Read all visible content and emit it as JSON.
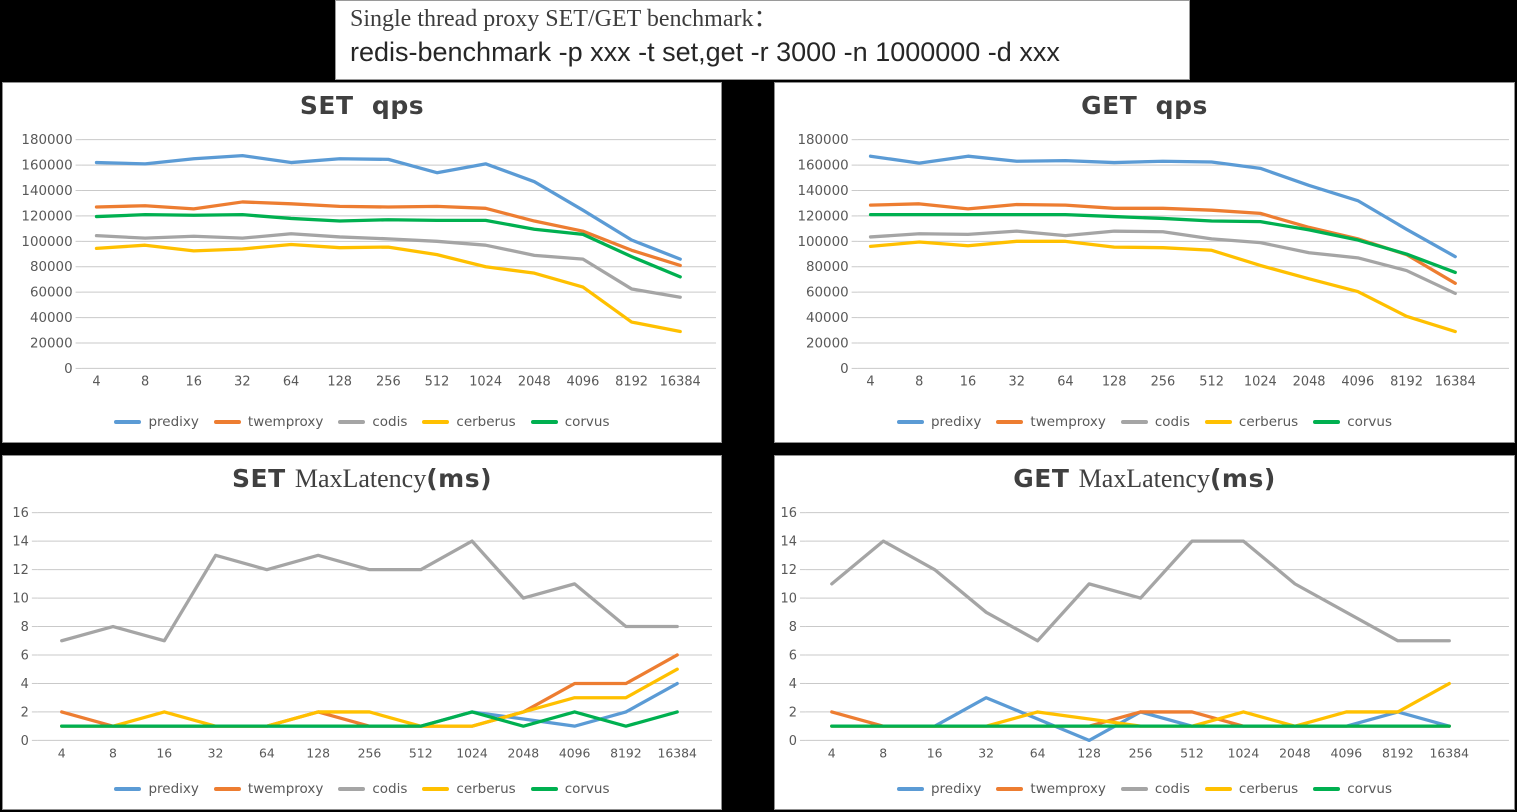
{
  "header": {
    "title_serif": "Single thread proxy SET/GET benchmark：",
    "command": "redis-benchmark -p xxx -t set,get -r 3000 -n 1000000 -d xxx"
  },
  "palette": {
    "predixy": "#5B9BD5",
    "twemproxy": "#ED7D31",
    "codis": "#A5A5A5",
    "cerberus": "#FFC000",
    "corvus": "#00B050",
    "gridline": "#C9C9C9",
    "axis_text": "#595959",
    "title_text": "#404040"
  },
  "legend_entries": [
    "predixy",
    "twemproxy",
    "codis",
    "cerberus",
    "corvus"
  ],
  "chart_data": [
    {
      "id": "set-qps",
      "type": "line",
      "title_parts": [
        {
          "text": "SET  qps",
          "font": "sans-bold"
        }
      ],
      "categories": [
        "4",
        "8",
        "16",
        "32",
        "64",
        "128",
        "256",
        "512",
        "1024",
        "2048",
        "4096",
        "8192",
        "16384"
      ],
      "xlabel": "",
      "ylabel": "",
      "ylim": [
        0,
        180000
      ],
      "y_step": 20000,
      "grid": true,
      "legend_position": "bottom",
      "series": [
        {
          "name": "predixy",
          "color": "#5B9BD5",
          "values": [
            162000,
            161000,
            165000,
            167500,
            162000,
            165000,
            164500,
            154000,
            161000,
            147000,
            124500,
            101000,
            86000
          ]
        },
        {
          "name": "twemproxy",
          "color": "#ED7D31",
          "values": [
            127000,
            128000,
            125500,
            131000,
            129500,
            127500,
            127000,
            127500,
            126000,
            116000,
            108000,
            93000,
            81000
          ]
        },
        {
          "name": "codis",
          "color": "#A5A5A5",
          "values": [
            104500,
            102500,
            104000,
            102500,
            106000,
            103500,
            102000,
            100000,
            97000,
            89000,
            86000,
            62500,
            56000
          ]
        },
        {
          "name": "cerberus",
          "color": "#FFC000",
          "values": [
            94500,
            97000,
            92500,
            94000,
            97500,
            95000,
            95500,
            89500,
            80000,
            75000,
            64000,
            36500,
            29000
          ]
        },
        {
          "name": "corvus",
          "color": "#00B050",
          "values": [
            119500,
            121000,
            120500,
            121000,
            118000,
            116000,
            117000,
            116500,
            116500,
            109500,
            105500,
            88000,
            72000
          ]
        }
      ]
    },
    {
      "id": "get-qps",
      "type": "line",
      "title_parts": [
        {
          "text": "GET  qps",
          "font": "sans-bold"
        }
      ],
      "categories": [
        "4",
        "8",
        "16",
        "32",
        "64",
        "128",
        "256",
        "512",
        "1024",
        "2048",
        "4096",
        "8192",
        "16384"
      ],
      "xlabel": "",
      "ylabel": "",
      "ylim": [
        0,
        180000
      ],
      "y_step": 20000,
      "grid": true,
      "legend_position": "bottom",
      "series": [
        {
          "name": "predixy",
          "color": "#5B9BD5",
          "values": [
            167000,
            161500,
            167000,
            163000,
            163500,
            162000,
            163000,
            162500,
            157500,
            144000,
            132000,
            109500,
            88000
          ]
        },
        {
          "name": "twemproxy",
          "color": "#ED7D31",
          "values": [
            128500,
            129500,
            125500,
            129000,
            128500,
            126000,
            126000,
            124500,
            122000,
            111000,
            102000,
            89500,
            67000
          ]
        },
        {
          "name": "codis",
          "color": "#A5A5A5",
          "values": [
            103500,
            106000,
            105500,
            108000,
            104500,
            108000,
            107500,
            102000,
            99000,
            91000,
            87000,
            77000,
            59000
          ]
        },
        {
          "name": "cerberus",
          "color": "#FFC000",
          "values": [
            96000,
            99500,
            96500,
            100000,
            100000,
            95500,
            95000,
            93000,
            81000,
            70500,
            60500,
            41000,
            29000
          ]
        },
        {
          "name": "corvus",
          "color": "#00B050",
          "values": [
            121000,
            121000,
            121000,
            121000,
            121000,
            119500,
            118000,
            116000,
            115500,
            109000,
            101000,
            90000,
            75500
          ]
        }
      ]
    },
    {
      "id": "set-maxlatency",
      "type": "line",
      "title_parts": [
        {
          "text": "SET ",
          "font": "sans-bold"
        },
        {
          "text": "MaxLatency",
          "font": "serif"
        },
        {
          "text": "(ms)",
          "font": "sans-bold"
        }
      ],
      "categories": [
        "4",
        "8",
        "16",
        "32",
        "64",
        "128",
        "256",
        "512",
        "1024",
        "2048",
        "4096",
        "8192",
        "16384"
      ],
      "xlabel": "",
      "ylabel": "",
      "ylim": [
        0,
        16
      ],
      "y_step": 2,
      "grid": true,
      "legend_position": "bottom",
      "series": [
        {
          "name": "predixy",
          "color": "#5B9BD5",
          "values": [
            1,
            1,
            1,
            1,
            1,
            1,
            1,
            1,
            2,
            1.5,
            1,
            2,
            4
          ]
        },
        {
          "name": "twemproxy",
          "color": "#ED7D31",
          "values": [
            2,
            1,
            1,
            1,
            1,
            2,
            1,
            1,
            1,
            2,
            4,
            4,
            6
          ]
        },
        {
          "name": "codis",
          "color": "#A5A5A5",
          "values": [
            7,
            8,
            7,
            13,
            12,
            13,
            12,
            12,
            14,
            10,
            11,
            8,
            8
          ]
        },
        {
          "name": "cerberus",
          "color": "#FFC000",
          "values": [
            1,
            1,
            2,
            1,
            1,
            2,
            2,
            1,
            1,
            2,
            3,
            3,
            5
          ]
        },
        {
          "name": "corvus",
          "color": "#00B050",
          "values": [
            1,
            1,
            1,
            1,
            1,
            1,
            1,
            1,
            2,
            1,
            2,
            1,
            2
          ]
        }
      ]
    },
    {
      "id": "get-maxlatency",
      "type": "line",
      "title_parts": [
        {
          "text": "GET ",
          "font": "sans-bold"
        },
        {
          "text": "MaxLatency",
          "font": "serif"
        },
        {
          "text": "(ms)",
          "font": "sans-bold"
        }
      ],
      "categories": [
        "4",
        "8",
        "16",
        "32",
        "64",
        "128",
        "256",
        "512",
        "1024",
        "2048",
        "4096",
        "8192",
        "16384"
      ],
      "xlabel": "",
      "ylabel": "",
      "ylim": [
        0,
        16
      ],
      "y_step": 2,
      "grid": true,
      "legend_position": "bottom",
      "series": [
        {
          "name": "predixy",
          "color": "#5B9BD5",
          "values": [
            1,
            1,
            1,
            3,
            1.5,
            0,
            2,
            1,
            1,
            1,
            1,
            2,
            1
          ]
        },
        {
          "name": "twemproxy",
          "color": "#ED7D31",
          "values": [
            2,
            1,
            1,
            1,
            1,
            1,
            2,
            2,
            1,
            1,
            1,
            1,
            1
          ]
        },
        {
          "name": "codis",
          "color": "#A5A5A5",
          "values": [
            11,
            14,
            12,
            9,
            7,
            11,
            10,
            14,
            14,
            11,
            9,
            7,
            7
          ]
        },
        {
          "name": "cerberus",
          "color": "#FFC000",
          "values": [
            1,
            1,
            1,
            1,
            2,
            1.5,
            1,
            1,
            2,
            1,
            2,
            2,
            4
          ]
        },
        {
          "name": "corvus",
          "color": "#00B050",
          "values": [
            1,
            1,
            1,
            1,
            1,
            1,
            1,
            1,
            1,
            1,
            1,
            1,
            1
          ]
        }
      ]
    }
  ]
}
